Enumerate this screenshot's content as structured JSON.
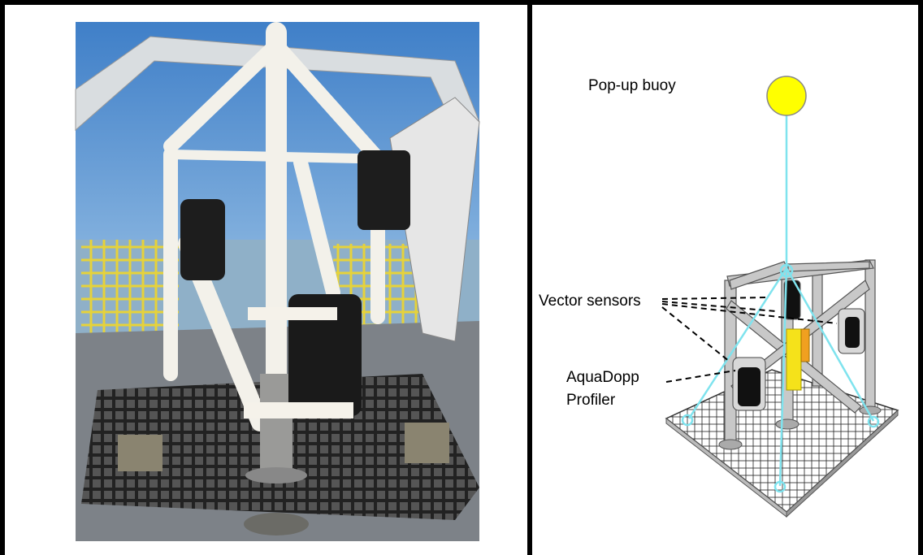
{
  "diagram": {
    "labels": {
      "pop_up_buoy": "Pop-up buoy",
      "vector_sensors": "Vector sensors",
      "aquadopp_profiler": [
        "AquaDopp",
        "Profiler"
      ]
    }
  }
}
